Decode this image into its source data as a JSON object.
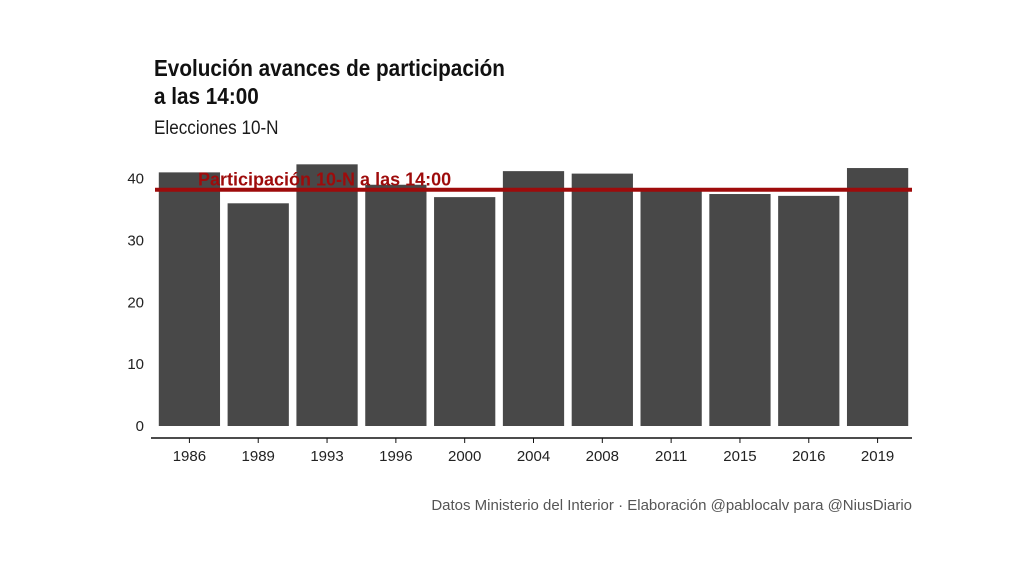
{
  "header": {
    "title_line1": "Evolución avances de participación",
    "title_line2": "a las 14:00",
    "subtitle": "Elecciones 10-N"
  },
  "caption": "Datos Ministerio del Interior · Elaboración @pablocalv para @NiusDiario",
  "colors": {
    "bar": "#484848",
    "reference_line": "#9e0b0b",
    "axis": "#111111"
  },
  "chart_data": {
    "type": "bar",
    "title": "Evolución avances de participación a las 14:00",
    "subtitle": "Elecciones 10-N",
    "categories": [
      "1986",
      "1989",
      "1993",
      "1996",
      "2000",
      "2004",
      "2008",
      "2011",
      "2015",
      "2016",
      "2019"
    ],
    "values": [
      41.0,
      36.0,
      42.3,
      39.0,
      37.0,
      41.2,
      40.8,
      38.0,
      37.5,
      37.2,
      41.7
    ],
    "xlabel": "",
    "ylabel": "",
    "ylim": [
      0,
      43
    ],
    "yticks": [
      0,
      10,
      20,
      30,
      40
    ],
    "grid": false,
    "reference_line": {
      "value": 38.2,
      "label": "Participación 10-N a las 14:00"
    }
  }
}
